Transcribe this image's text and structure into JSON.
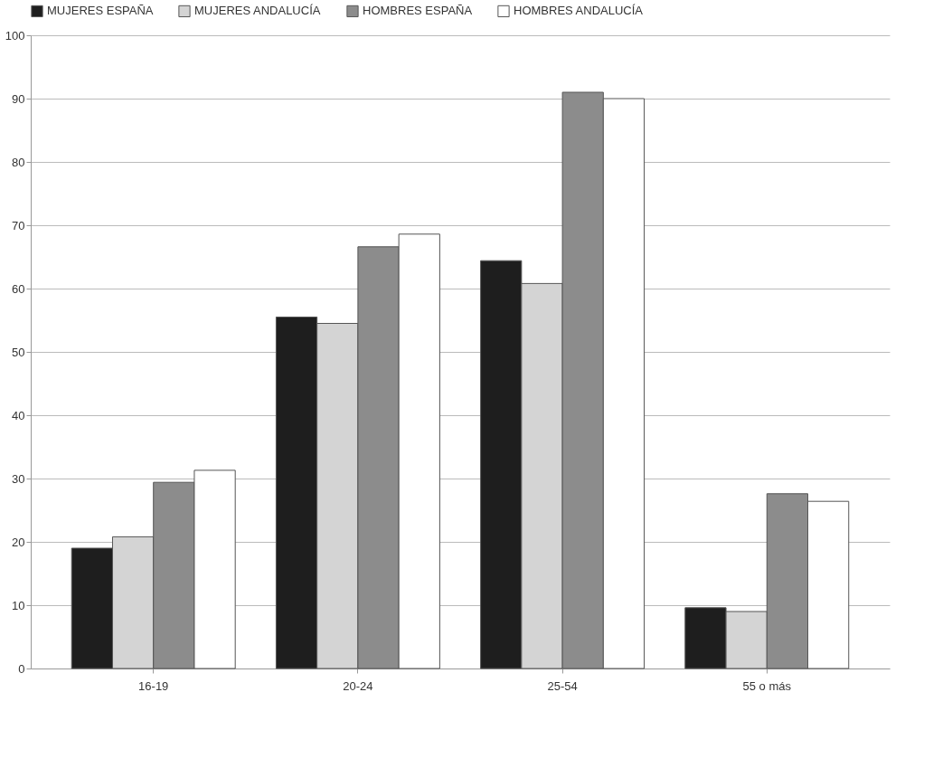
{
  "chart_data": {
    "type": "bar",
    "categories": [
      "16-19",
      "20-24",
      "25-54",
      "55 o más"
    ],
    "series": [
      {
        "name": "MUJERES ESPAÑA",
        "color": "#1e1e1e",
        "values": [
          19.0,
          55.5,
          64.4,
          9.6
        ]
      },
      {
        "name": "MUJERES ANDALUCÍA",
        "color": "#d4d4d4",
        "values": [
          20.8,
          54.5,
          60.8,
          9.0
        ]
      },
      {
        "name": "HOMBRES ESPAÑA",
        "color": "#8c8c8c",
        "values": [
          29.4,
          66.6,
          91.0,
          27.6
        ]
      },
      {
        "name": "HOMBRES ANDALUCÍA",
        "color": "#ffffff",
        "values": [
          31.3,
          68.6,
          90.0,
          26.4
        ]
      }
    ],
    "ylim": [
      0,
      100
    ],
    "yticks": [
      0,
      10,
      20,
      30,
      40,
      50,
      60,
      70,
      80,
      90,
      100
    ],
    "grid": "y",
    "legend": "top"
  }
}
